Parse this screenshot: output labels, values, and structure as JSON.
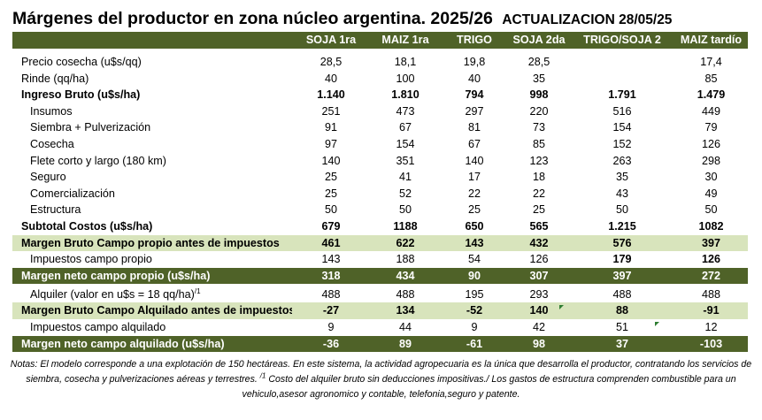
{
  "title": {
    "main": "Márgenes  del productor en zona núcleo argentina. 2025/26",
    "update": "ACTUALIZACION 28/05/25"
  },
  "columns": [
    "SOJA 1ra",
    "MAIZ 1ra",
    "TRIGO",
    "SOJA 2da",
    "TRIGO/SOJA 2",
    "MAIZ tardío"
  ],
  "rows": [
    {
      "label": "Precio cosecha (u$s/qq)",
      "values": [
        "28,5",
        "18,1",
        "19,8",
        "28,5",
        "",
        "17,4"
      ]
    },
    {
      "label": "Rinde (qq/ha)",
      "values": [
        "40",
        "100",
        "40",
        "35",
        "",
        "85"
      ]
    },
    {
      "label": "Ingreso Bruto (u$s/ha)",
      "values": [
        "1.140",
        "1.810",
        "794",
        "998",
        "1.791",
        "1.479"
      ]
    },
    {
      "label": "Insumos",
      "values": [
        "251",
        "473",
        "297",
        "220",
        "516",
        "449"
      ]
    },
    {
      "label": "Siembra + Pulverización",
      "values": [
        "91",
        "67",
        "81",
        "73",
        "154",
        "79"
      ]
    },
    {
      "label": "Cosecha",
      "values": [
        "97",
        "154",
        "67",
        "85",
        "152",
        "126"
      ]
    },
    {
      "label": "Flete corto y largo (180 km)",
      "values": [
        "140",
        "351",
        "140",
        "123",
        "263",
        "298"
      ]
    },
    {
      "label": "Seguro",
      "values": [
        "25",
        "41",
        "17",
        "18",
        "35",
        "30"
      ]
    },
    {
      "label": "Comercialización",
      "values": [
        "25",
        "52",
        "22",
        "22",
        "43",
        "49"
      ]
    },
    {
      "label": "Estructura",
      "values": [
        "50",
        "50",
        "25",
        "25",
        "50",
        "50"
      ]
    },
    {
      "label": "Subtotal Costos (u$s/ha)",
      "values": [
        "679",
        "1188",
        "650",
        "565",
        "1.215",
        "1082"
      ]
    },
    {
      "label": "Margen Bruto Campo propio antes de impuestos",
      "values": [
        "461",
        "622",
        "143",
        "432",
        "576",
        "397"
      ]
    },
    {
      "label": "Impuestos  campo propio",
      "values": [
        "143",
        "188",
        "54",
        "126",
        "179",
        "126"
      ]
    },
    {
      "label": "Margen neto campo propio (u$s/ha)",
      "values": [
        "318",
        "434",
        "90",
        "307",
        "397",
        "272"
      ]
    },
    {
      "label": "Alquiler (valor en u$s = 18 qq/ha)",
      "sup": "/1",
      "values": [
        "488",
        "488",
        "195",
        "293",
        "488",
        "488"
      ]
    },
    {
      "label": "Margen Bruto Campo Alquilado antes de impuestos",
      "values": [
        "-27",
        "134",
        "-52",
        "140",
        "88",
        "-91"
      ]
    },
    {
      "label": "Impuestos campo alquilado",
      "values": [
        "9",
        "44",
        "9",
        "42",
        "51",
        "12"
      ]
    },
    {
      "label": "Margen neto campo alquilado (u$s/ha)",
      "values": [
        "-36",
        "89",
        "-61",
        "98",
        "37",
        "-103"
      ]
    }
  ],
  "notes": {
    "part1": "Notas: El modelo corresponde a una explotación de 150 hectáreas. En este sistema, la actividad agropecuaria es la única que desarrolla el productor, contratando los servicios de siembra, cosecha y pulverizaciones aéreas y terrestres. ",
    "sup": "/1",
    "part2": " Costo del alquiler bruto sin deducciones impositivas./ Los gastos de estructura comprenden combustible para un vehiculo,asesor agronomico y contable, telefonia,seguro y patente."
  }
}
